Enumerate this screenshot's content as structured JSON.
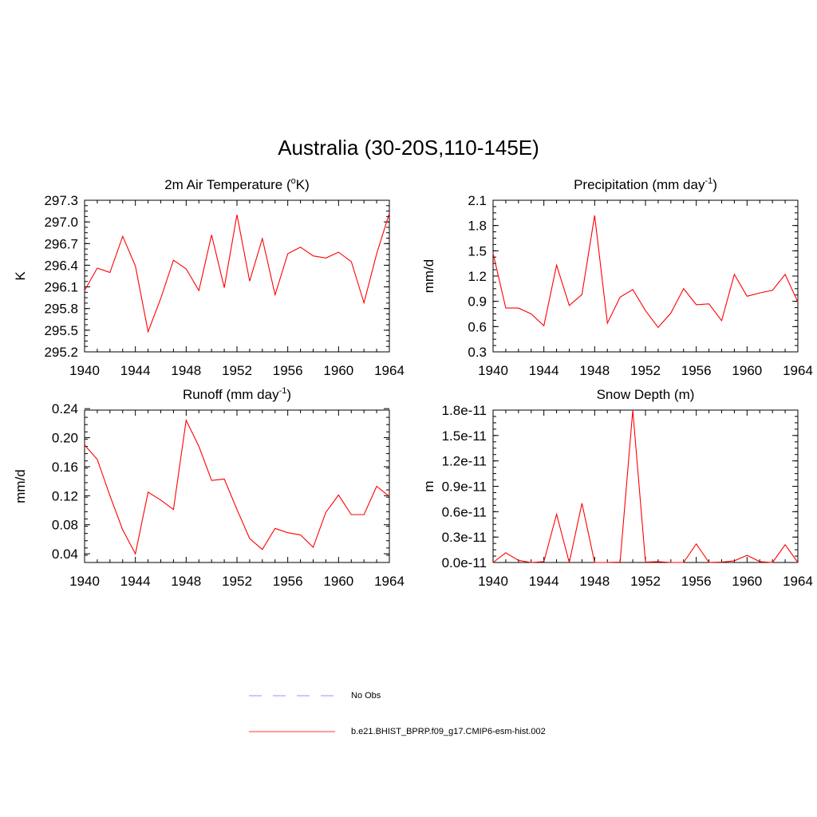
{
  "main_title": "Australia (30-20S,110-145E)",
  "legend": [
    {
      "label": "No Obs",
      "color": "#a8a8ff",
      "dash": true
    },
    {
      "label": "b.e21.BHIST_BPRP.f09_g17.CMIP6-esm-hist.002",
      "color": "#ff0000",
      "dash": false
    }
  ],
  "chart_data": [
    {
      "type": "line",
      "title": "2m Air Temperature (",
      "title_sup": "o",
      "title_after": "K)",
      "ylabel": "K",
      "xlim": [
        1940,
        1964
      ],
      "xticks": [
        "1940",
        "1944",
        "1948",
        "1952",
        "1956",
        "1960",
        "1964"
      ],
      "ylim": [
        295.2,
        297.3
      ],
      "yticks": [
        "295.2",
        "295.5",
        "295.8",
        "296.1",
        "296.4",
        "296.7",
        "297.0",
        "297.3"
      ],
      "series": [
        {
          "color": "#ff0000",
          "x": [
            1940,
            1941,
            1942,
            1943,
            1944,
            1945,
            1946,
            1947,
            1948,
            1949,
            1950,
            1951,
            1952,
            1953,
            1954,
            1955,
            1956,
            1957,
            1958,
            1959,
            1960,
            1961,
            1962,
            1963,
            1964
          ],
          "y": [
            296.05,
            296.36,
            296.3,
            296.8,
            296.39,
            295.48,
            295.94,
            296.47,
            296.35,
            296.05,
            296.82,
            296.09,
            297.1,
            296.18,
            296.77,
            295.99,
            296.56,
            296.65,
            296.53,
            296.5,
            296.58,
            296.45,
            295.88,
            296.56,
            297.12
          ]
        }
      ]
    },
    {
      "type": "line",
      "title": "Precipitation (mm day",
      "title_sup": "-1",
      "title_after": ")",
      "ylabel": "mm/d",
      "xlim": [
        1940,
        1964
      ],
      "xticks": [
        "1940",
        "1944",
        "1948",
        "1952",
        "1956",
        "1960",
        "1964"
      ],
      "ylim": [
        0.3,
        2.1
      ],
      "yticks": [
        "0.3",
        "0.6",
        "0.9",
        "1.2",
        "1.5",
        "1.8",
        "2.1"
      ],
      "series": [
        {
          "color": "#ff0000",
          "x": [
            1940,
            1941,
            1942,
            1943,
            1944,
            1945,
            1946,
            1947,
            1948,
            1949,
            1950,
            1951,
            1952,
            1953,
            1954,
            1955,
            1956,
            1957,
            1958,
            1959,
            1960,
            1961,
            1962,
            1963,
            1964
          ],
          "y": [
            1.47,
            0.82,
            0.82,
            0.75,
            0.61,
            1.33,
            0.85,
            0.98,
            1.92,
            0.64,
            0.95,
            1.04,
            0.79,
            0.59,
            0.76,
            1.05,
            0.86,
            0.87,
            0.67,
            1.22,
            0.96,
            1.0,
            1.03,
            1.22,
            0.89
          ]
        }
      ]
    },
    {
      "type": "line",
      "title": "Runoff (mm day",
      "title_sup": "-1",
      "title_after": ")",
      "ylabel": "mm/d",
      "xlim": [
        1940,
        1964
      ],
      "xticks": [
        "1940",
        "1944",
        "1948",
        "1952",
        "1956",
        "1960",
        "1964"
      ],
      "ylim": [
        0.028,
        0.238
      ],
      "yticks": [
        "0.04",
        "0.08",
        "0.12",
        "0.16",
        "0.20",
        "0.24"
      ],
      "series": [
        {
          "color": "#ff0000",
          "x": [
            1940,
            1941,
            1942,
            1943,
            1944,
            1945,
            1946,
            1947,
            1948,
            1949,
            1950,
            1951,
            1952,
            1953,
            1954,
            1955,
            1956,
            1957,
            1958,
            1959,
            1960,
            1961,
            1962,
            1963,
            1964
          ],
          "y": [
            0.19,
            0.17,
            0.12,
            0.073,
            0.04,
            0.125,
            0.114,
            0.101,
            0.224,
            0.188,
            0.141,
            0.143,
            0.101,
            0.061,
            0.046,
            0.075,
            0.069,
            0.066,
            0.049,
            0.097,
            0.121,
            0.094,
            0.094,
            0.133,
            0.119
          ]
        }
      ]
    },
    {
      "type": "line",
      "title": "Snow Depth (m)",
      "title_sup": "",
      "title_after": "",
      "ylabel": "m",
      "xlim": [
        1940,
        1964
      ],
      "xticks": [
        "1940",
        "1944",
        "1948",
        "1952",
        "1956",
        "1960",
        "1964"
      ],
      "ylim": [
        0.0,
        1.8e-11
      ],
      "yticks": [
        "0.0e-11",
        "0.3e-11",
        "0.6e-11",
        "0.9e-11",
        "1.2e-11",
        "1.5e-11",
        "1.8e-11"
      ],
      "series": [
        {
          "color": "#ff0000",
          "x": [
            1940,
            1941,
            1942,
            1943,
            1944,
            1945,
            1946,
            1947,
            1948,
            1949,
            1950,
            1951,
            1952,
            1953,
            1954,
            1955,
            1956,
            1957,
            1958,
            1959,
            1960,
            1961,
            1962,
            1963,
            1964
          ],
          "y": [
            0.0,
            1.15e-12,
            2.5e-13,
            0.0,
            1e-13,
            5.7e-12,
            0.0,
            7e-12,
            0.0,
            0.0,
            5e-14,
            1.8e-11,
            5e-14,
            1e-13,
            0.0,
            0.0,
            2.2e-12,
            0.0,
            5e-14,
            2e-13,
            8.5e-13,
            1e-13,
            0.0,
            2.1e-12,
            0.0
          ]
        }
      ]
    }
  ]
}
